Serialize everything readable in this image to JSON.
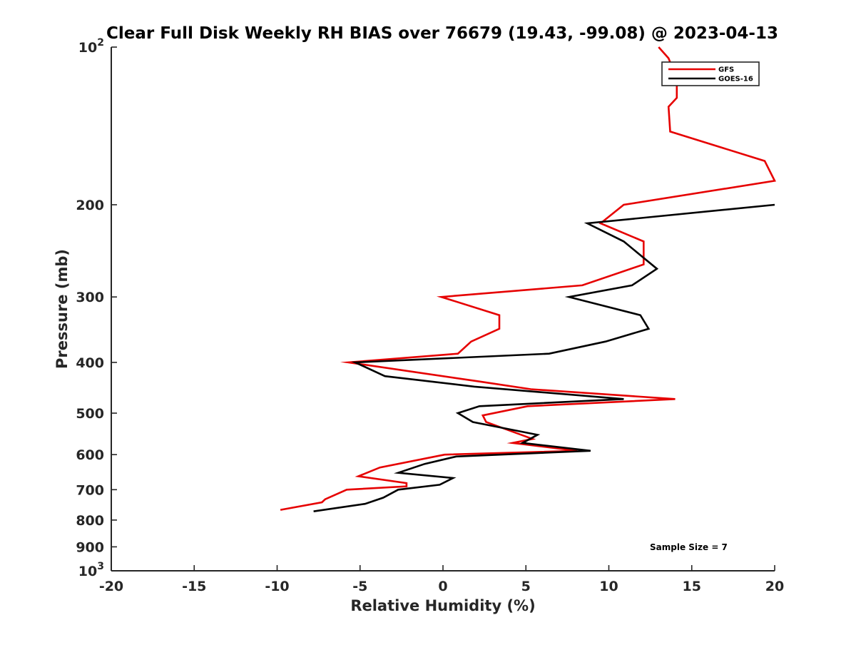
{
  "chart_data": {
    "type": "line",
    "title": "Clear Full Disk Weekly RH BIAS over 76679 (19.43, -99.08) @ 2023-04-13",
    "xlabel": "Relative Humidity (%)",
    "ylabel": "Pressure (mb)",
    "xlim": [
      -20,
      20
    ],
    "ylim": [
      100,
      1000
    ],
    "y_scale": "log",
    "y_reversed": true,
    "x_ticks": [
      "-20",
      "-15",
      "-10",
      "-5",
      "0",
      "5",
      "10",
      "15",
      "20"
    ],
    "y_ticks": [
      {
        "value": 100,
        "base": "10",
        "exp": "2"
      },
      {
        "value": 200,
        "label": "200"
      },
      {
        "value": 300,
        "label": "300"
      },
      {
        "value": 400,
        "label": "400"
      },
      {
        "value": 500,
        "label": "500"
      },
      {
        "value": 600,
        "label": "600"
      },
      {
        "value": 700,
        "label": "700"
      },
      {
        "value": 800,
        "label": "800"
      },
      {
        "value": 900,
        "label": "900"
      },
      {
        "value": 1000,
        "base": "10",
        "exp": "3"
      }
    ],
    "grid": false,
    "legend_position": "top-right",
    "annotation": "Sample Size = 7",
    "series": [
      {
        "name": "GFS",
        "color": "#e60000",
        "points": [
          [
            13.0,
            100
          ],
          [
            13.6,
            105
          ],
          [
            14.1,
            115
          ],
          [
            14.1,
            125
          ],
          [
            13.6,
            130
          ],
          [
            13.7,
            145
          ],
          [
            19.4,
            165
          ],
          [
            20.0,
            180
          ],
          [
            10.9,
            200
          ],
          [
            9.5,
            217
          ],
          [
            12.1,
            235
          ],
          [
            12.1,
            260
          ],
          [
            8.4,
            285
          ],
          [
            -0.1,
            300
          ],
          [
            3.4,
            325
          ],
          [
            3.4,
            345
          ],
          [
            1.7,
            365
          ],
          [
            0.9,
            385
          ],
          [
            -5.7,
            400
          ],
          [
            2.2,
            435
          ],
          [
            5.3,
            450
          ],
          [
            14.0,
            470
          ],
          [
            5.1,
            485
          ],
          [
            2.4,
            505
          ],
          [
            2.6,
            520
          ],
          [
            5.4,
            560
          ],
          [
            4.2,
            570
          ],
          [
            8.1,
            590
          ],
          [
            0.1,
            600
          ],
          [
            -3.8,
            635
          ],
          [
            -5.1,
            660
          ],
          [
            -2.2,
            680
          ],
          [
            -2.2,
            690
          ],
          [
            -5.8,
            700
          ],
          [
            -7.1,
            730
          ],
          [
            -7.3,
            740
          ],
          [
            -9.8,
            765
          ]
        ]
      },
      {
        "name": "GOES-16",
        "color": "#000000",
        "points": [
          [
            20.0,
            200
          ],
          [
            8.7,
            217
          ],
          [
            10.9,
            235
          ],
          [
            12.9,
            265
          ],
          [
            11.4,
            285
          ],
          [
            7.6,
            300
          ],
          [
            11.9,
            325
          ],
          [
            12.4,
            345
          ],
          [
            9.8,
            365
          ],
          [
            6.4,
            385
          ],
          [
            -5.3,
            400
          ],
          [
            -3.5,
            425
          ],
          [
            1.9,
            445
          ],
          [
            10.9,
            470
          ],
          [
            2.2,
            485
          ],
          [
            0.9,
            500
          ],
          [
            1.8,
            520
          ],
          [
            5.7,
            550
          ],
          [
            4.8,
            570
          ],
          [
            8.9,
            590
          ],
          [
            0.8,
            605
          ],
          [
            -1.1,
            625
          ],
          [
            -2.7,
            650
          ],
          [
            0.6,
            665
          ],
          [
            -0.2,
            685
          ],
          [
            -2.7,
            700
          ],
          [
            -3.6,
            725
          ],
          [
            -4.7,
            745
          ],
          [
            -7.8,
            770
          ]
        ]
      }
    ]
  }
}
